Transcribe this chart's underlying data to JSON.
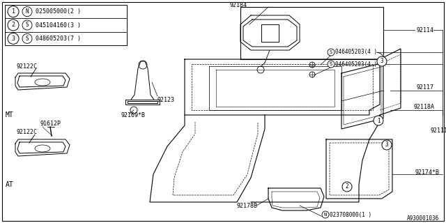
{
  "bg_color": "#ffffff",
  "diagram_id": "A930001036",
  "legend": [
    {
      "num": "1",
      "type": "N",
      "code": "025005000",
      "qty": "2"
    },
    {
      "num": "2",
      "type": "S",
      "code": "045104160",
      "qty": "3"
    },
    {
      "num": "3",
      "type": "S",
      "code": "048605203",
      "qty": "7"
    }
  ]
}
